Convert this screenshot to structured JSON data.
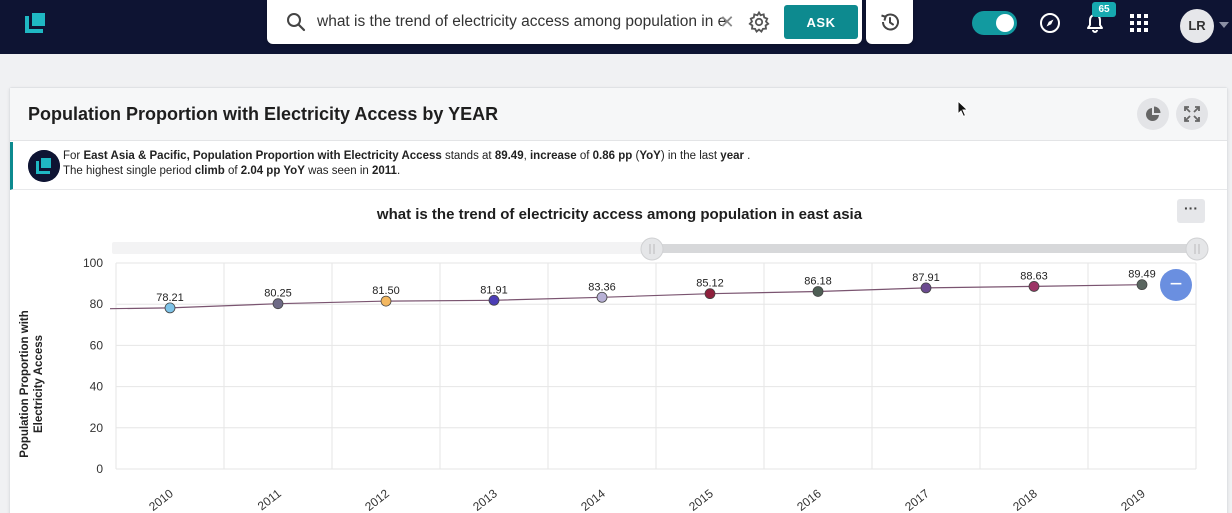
{
  "topbar": {
    "search": {
      "value": "what is the trend of electricity access among population in east asia",
      "placeholder": ""
    },
    "ask_label": "ASK",
    "notifications_count": "65",
    "avatar_initials": "LR",
    "toggle_on": true,
    "accent_color": "#0d8a8f"
  },
  "card": {
    "title": "Population Proportion with Electricity Access by YEAR",
    "insight": {
      "l1_a": "For ",
      "l1_b": "East Asia & Pacific, Population Proportion with Electricity Access",
      "l1_c": " stands at ",
      "l1_d": "89.49",
      "l1_e": ", ",
      "l1_f": "increase",
      "l1_g": " of ",
      "l1_h": "0.86 pp",
      "l1_i": " (",
      "l1_j": "YoY",
      "l1_k": ") in the last ",
      "l1_l": "year",
      "l1_m": " .",
      "l2_a": "The highest single period ",
      "l2_b": "climb",
      "l2_c": " of ",
      "l2_d": "2.04 pp YoY",
      "l2_e": " was seen in ",
      "l2_f": "2011",
      "l2_g": "."
    },
    "more_label": "···",
    "zoom_label": "−"
  },
  "chart_data": {
    "type": "line",
    "title": "what is the trend of electricity access among population in east asia",
    "xlabel": "",
    "ylabel": "Population Proportion with Electricity Access",
    "categories": [
      "2010",
      "2011",
      "2012",
      "2013",
      "2014",
      "2015",
      "2016",
      "2017",
      "2018",
      "2019"
    ],
    "values": [
      78.21,
      80.25,
      81.5,
      81.91,
      83.36,
      85.12,
      86.18,
      87.91,
      88.63,
      89.49
    ],
    "value_labels": [
      "78.21",
      "80.25",
      "81.50",
      "81.91",
      "83.36",
      "85.12",
      "86.18",
      "87.91",
      "88.63",
      "89.49"
    ],
    "point_colors": [
      "#7ec3e8",
      "#6e6a86",
      "#f4b860",
      "#4b3db5",
      "#b8b1d6",
      "#8e1f3c",
      "#4f5f55",
      "#6b4a90",
      "#9c3566",
      "#5a6660"
    ],
    "line_color": "#7a5470",
    "ylim": [
      0,
      100
    ],
    "yticks": [
      "0",
      "20",
      "40",
      "60",
      "80",
      "100"
    ],
    "grid": true,
    "legend": "none"
  }
}
